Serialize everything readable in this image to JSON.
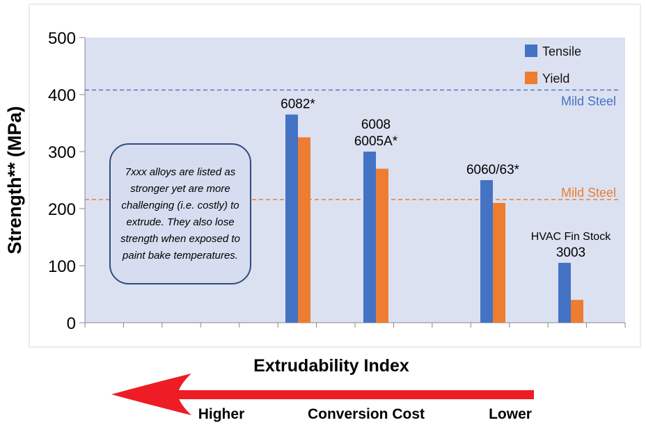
{
  "chart_data": {
    "type": "bar",
    "ylabel": "Strength** (MPa)",
    "xlabel": "Extrudability Index",
    "ylim": [
      0,
      500
    ],
    "yticks": [
      "0",
      "100",
      "200",
      "300",
      "400",
      "500"
    ],
    "grid": false,
    "legend_position": "top-right",
    "series": [
      {
        "name": "Tensile",
        "color": "#4472c4"
      },
      {
        "name": "Yield",
        "color": "#ed7d31"
      }
    ],
    "groups": [
      {
        "label_lines": [
          "6082*"
        ],
        "tensile": 365,
        "yield": 325
      },
      {
        "label_lines": [
          "6008",
          "6005A*"
        ],
        "tensile": 300,
        "yield": 270
      },
      {
        "label_lines": [
          "6060/63*"
        ],
        "tensile": 250,
        "yield": 210
      },
      {
        "label_lines": [
          "HVAC Fin Stock",
          "3003"
        ],
        "tensile": 105,
        "yield": 40
      }
    ],
    "reference_lines": [
      {
        "label": "Mild Steel",
        "value": 408,
        "color": "#4472c4"
      },
      {
        "label": "Mild Steel",
        "value": 216,
        "color": "#ed7d31"
      }
    ],
    "annotation": "7xxx alloys are listed as stronger yet are more challenging (i.e. costly) to extrude. They also lose strength when exposed to paint bake temperatures.",
    "plot_background": "#dbe1f1"
  },
  "arrow": {
    "color": "#ee1c25",
    "left_label": "Higher",
    "center_label": "Conversion Cost",
    "right_label": "Lower"
  }
}
